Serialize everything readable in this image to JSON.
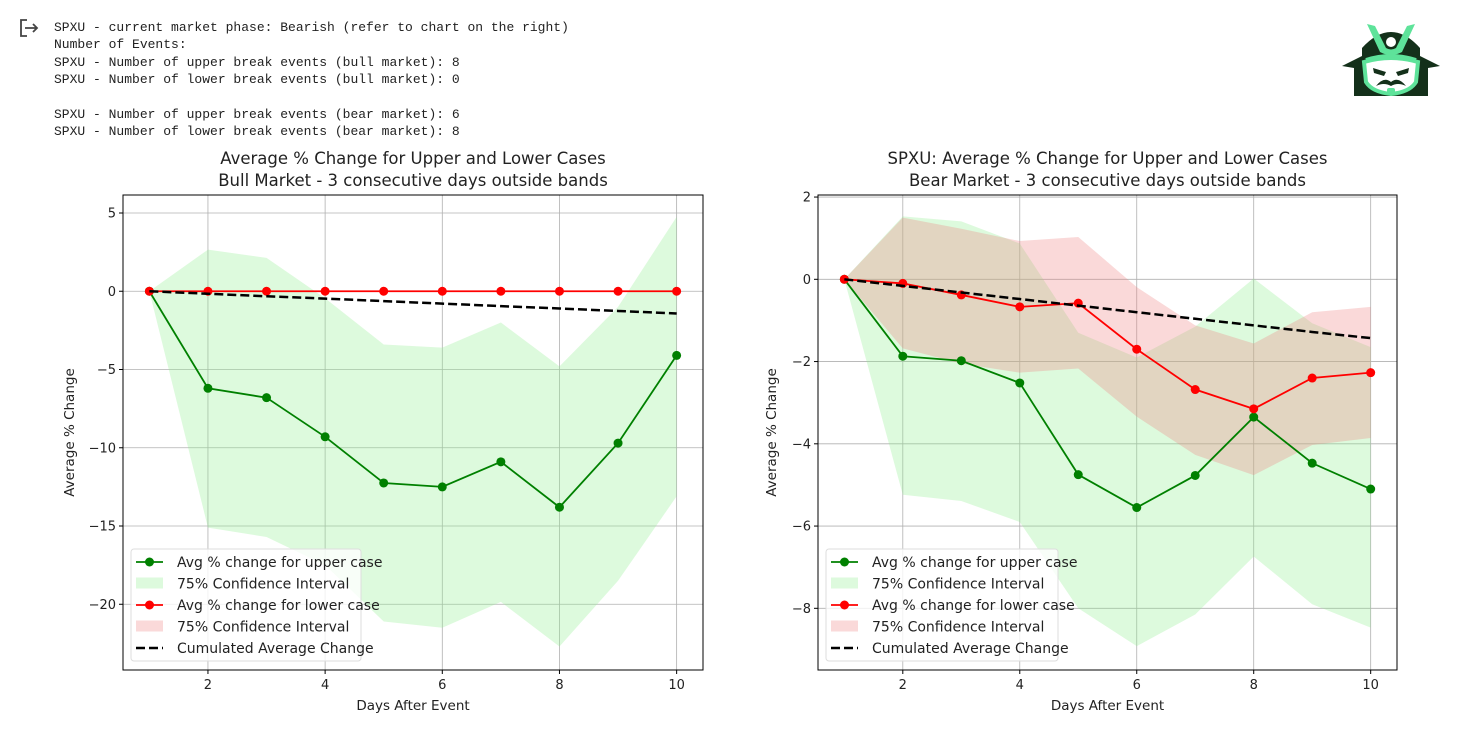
{
  "console": {
    "lines": [
      "SPXU - current market phase: Bearish (refer to chart on the right)",
      "Number of Events:",
      "SPXU - Number of upper break events (bull market): 8",
      "SPXU - Number of lower break events (bull market): 0",
      "",
      "SPXU - Number of upper break events (bear market): 6",
      "SPXU - Number of lower break events (bear market): 8"
    ],
    "icon": "output-arrow-icon"
  },
  "logo": {
    "icon": "samurai-helmet-logo",
    "colors": {
      "dark": "#14301a",
      "accent": "#5ee39a"
    }
  },
  "colors": {
    "upper": "#008000",
    "upper_ci": "#90ee90",
    "lower": "#ff0000",
    "lower_ci": "#f08080",
    "cumulative": "#000000"
  },
  "chart_data": [
    {
      "type": "line",
      "title": "Average % Change for Upper and Lower Cases",
      "subtitle": "Bull Market - 3 consecutive days outside bands",
      "xlabel": "Days After Event",
      "ylabel": "Average % Change",
      "xlim": [
        0.55,
        10.45
      ],
      "ylim": [
        -24.2,
        6.15
      ],
      "xticks": [
        2,
        4,
        6,
        8,
        10
      ],
      "yticks": [
        5,
        0,
        -5,
        -10,
        -15,
        -20
      ],
      "grid": true,
      "legend_position": "lower-left",
      "x": [
        1,
        2,
        3,
        4,
        5,
        6,
        7,
        8,
        9,
        10
      ],
      "series": [
        {
          "name": "Avg % change for upper case",
          "kind": "line-marker",
          "color": "#008000",
          "values": [
            0,
            -6.2,
            -6.8,
            -9.3,
            -12.25,
            -12.5,
            -10.9,
            -13.8,
            -9.7,
            -4.1
          ]
        },
        {
          "name": "75% Confidence Interval",
          "kind": "band",
          "color": "#90ee90",
          "upper": [
            0,
            2.66,
            2.13,
            -0.45,
            -3.4,
            -3.6,
            -2.0,
            -4.8,
            -1.0,
            4.75
          ],
          "lower": [
            0,
            -15.1,
            -15.7,
            -17.5,
            -21.1,
            -21.5,
            -19.85,
            -22.7,
            -18.5,
            -13.1
          ]
        },
        {
          "name": "Avg % change for lower case",
          "kind": "line-marker",
          "color": "#ff0000",
          "values": [
            0,
            0,
            0,
            0,
            0,
            0,
            0,
            0,
            0,
            0
          ]
        },
        {
          "name": "75% Confidence Interval",
          "kind": "band",
          "color": "#f08080",
          "upper": [
            0,
            0,
            0,
            0,
            0,
            0,
            0,
            0,
            0,
            0
          ],
          "lower": [
            0,
            0,
            0,
            0,
            0,
            0,
            0,
            0,
            0,
            0
          ]
        },
        {
          "name": "Cumulated Average Change",
          "kind": "dashed",
          "color": "#000000",
          "values": [
            0,
            -0.16,
            -0.32,
            -0.47,
            -0.63,
            -0.79,
            -0.95,
            -1.1,
            -1.26,
            -1.42
          ]
        }
      ]
    },
    {
      "type": "line",
      "title": "SPXU: Average % Change for Upper and Lower Cases",
      "subtitle": "Bear Market - 3 consecutive days outside bands",
      "xlabel": "Days After Event",
      "ylabel": "Average % Change",
      "xlim": [
        0.55,
        10.45
      ],
      "ylim": [
        -9.5,
        2.05
      ],
      "xticks": [
        2,
        4,
        6,
        8,
        10
      ],
      "yticks": [
        2,
        0,
        -2,
        -4,
        -6,
        -8
      ],
      "grid": true,
      "legend_position": "lower-left",
      "x": [
        1,
        2,
        3,
        4,
        5,
        6,
        7,
        8,
        9,
        10
      ],
      "series": [
        {
          "name": "Avg % change for upper case",
          "kind": "line-marker",
          "color": "#008000",
          "values": [
            0,
            -1.87,
            -1.98,
            -2.52,
            -4.75,
            -5.55,
            -4.77,
            -3.35,
            -4.47,
            -5.1
          ]
        },
        {
          "name": "75% Confidence Interval",
          "kind": "band",
          "color": "#90ee90",
          "upper": [
            0,
            1.53,
            1.41,
            0.87,
            -1.3,
            -1.9,
            -1.15,
            0.02,
            -1.07,
            -1.65
          ],
          "lower": [
            0,
            -5.24,
            -5.39,
            -5.9,
            -8.0,
            -8.92,
            -8.15,
            -6.74,
            -7.9,
            -8.47
          ]
        },
        {
          "name": "Avg % change for lower case",
          "kind": "line-marker",
          "color": "#ff0000",
          "values": [
            0,
            -0.1,
            -0.38,
            -0.67,
            -0.58,
            -1.7,
            -2.68,
            -3.15,
            -2.4,
            -2.27
          ]
        },
        {
          "name": "75% Confidence Interval",
          "kind": "band",
          "color": "#f08080",
          "upper": [
            0,
            1.5,
            1.23,
            0.93,
            1.03,
            -0.19,
            -1.12,
            -1.56,
            -0.8,
            -0.67
          ],
          "lower": [
            0,
            -1.68,
            -2.05,
            -2.27,
            -2.17,
            -3.34,
            -4.27,
            -4.76,
            -4.03,
            -3.86
          ]
        },
        {
          "name": "Cumulated Average Change",
          "kind": "dashed",
          "color": "#000000",
          "values": [
            0,
            -0.16,
            -0.32,
            -0.48,
            -0.64,
            -0.8,
            -0.96,
            -1.12,
            -1.28,
            -1.43
          ]
        }
      ]
    }
  ]
}
